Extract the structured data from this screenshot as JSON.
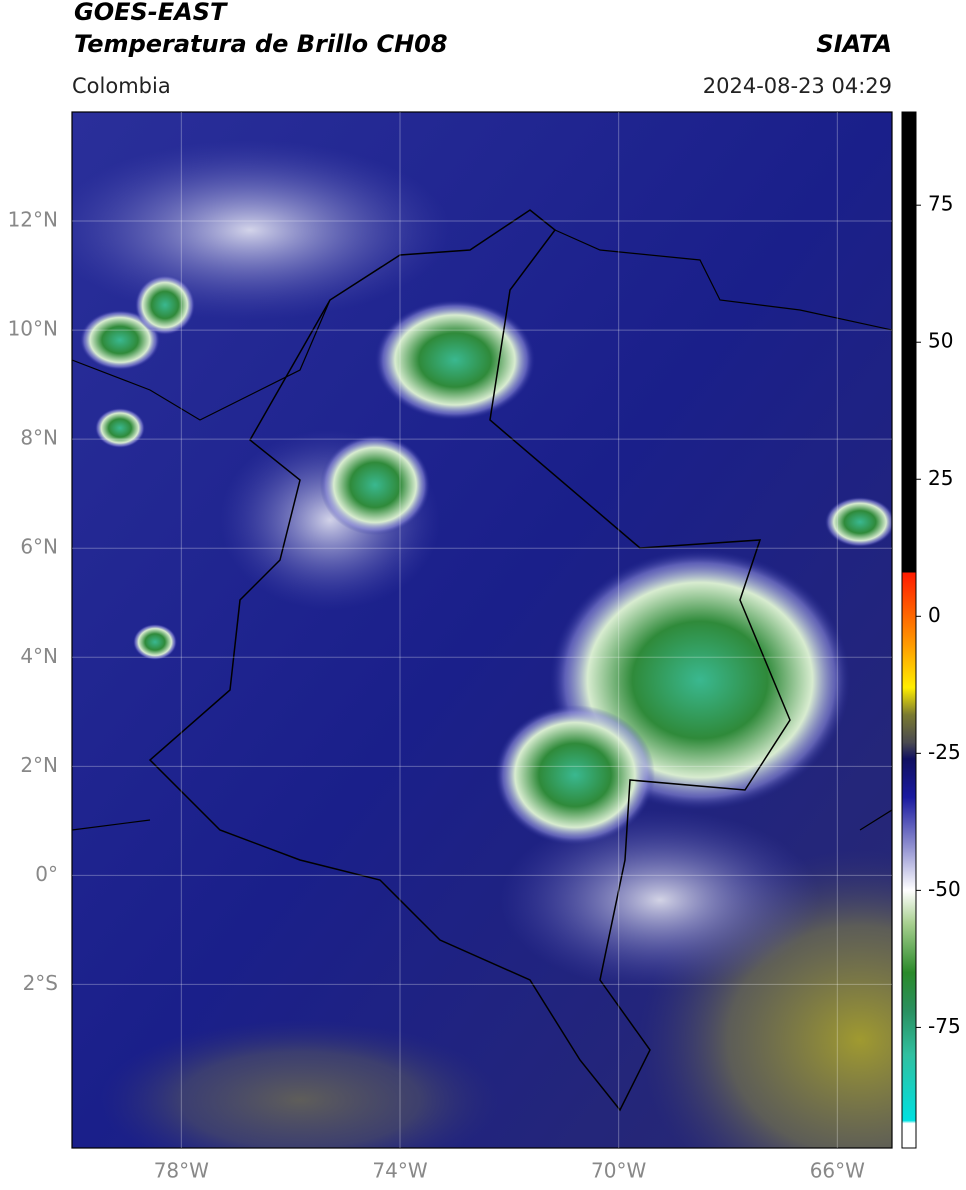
{
  "header": {
    "title": "GOES-EAST",
    "subtitle": "Temperatura de Brillo CH08",
    "source": "SIATA",
    "region": "Colombia",
    "datetime": "2024-08-23 04:29"
  },
  "map": {
    "lonlim": [
      -80,
      -65
    ],
    "latlim": [
      -5,
      14
    ],
    "xticks": [
      {
        "value": -78,
        "label": "78°W"
      },
      {
        "value": -74,
        "label": "74°W"
      },
      {
        "value": -70,
        "label": "70°W"
      },
      {
        "value": -66,
        "label": "66°W"
      }
    ],
    "yticks": [
      {
        "value": 12,
        "label": "12°N"
      },
      {
        "value": 10,
        "label": "10°N"
      },
      {
        "value": 8,
        "label": "8°N"
      },
      {
        "value": 6,
        "label": "6°N"
      },
      {
        "value": 4,
        "label": "4°N"
      },
      {
        "value": 2,
        "label": "2°N"
      },
      {
        "value": 0,
        "label": "0°"
      },
      {
        "value": -2,
        "label": "2°S"
      }
    ],
    "grid": true
  },
  "colorbar": {
    "lim": [
      -97,
      92
    ],
    "ticks": [
      75,
      50,
      25,
      0,
      -25,
      -50,
      -75
    ],
    "colormap": [
      [
        92,
        "#000000"
      ],
      [
        8,
        "#000000"
      ],
      [
        8,
        "#ff1a00"
      ],
      [
        -5,
        "#ff9900"
      ],
      [
        -13,
        "#ffee00"
      ],
      [
        -18,
        "#7a7a30"
      ],
      [
        -23,
        "#4a4a50"
      ],
      [
        -26,
        "#101060"
      ],
      [
        -33,
        "#1a1aa0"
      ],
      [
        -42,
        "#9090d0"
      ],
      [
        -50,
        "#ffffff"
      ],
      [
        -56,
        "#a8d090"
      ],
      [
        -65,
        "#2a8a2a"
      ],
      [
        -72,
        "#2a9060"
      ],
      [
        -80,
        "#30c0a0"
      ],
      [
        -92,
        "#00e0e0"
      ],
      [
        -92.5,
        "#ffffff"
      ],
      [
        -97,
        "#ffffff"
      ]
    ]
  }
}
